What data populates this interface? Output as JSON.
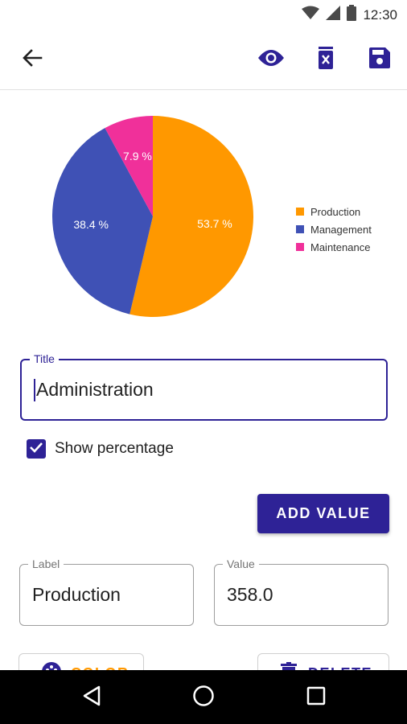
{
  "status_bar": {
    "time": "12:30",
    "icons": [
      "wifi-icon",
      "signal-icon",
      "battery-icon"
    ]
  },
  "app_bar": {
    "icons": [
      "back-arrow-icon",
      "eye-icon",
      "delete-sheet-icon",
      "save-icon"
    ]
  },
  "chart_data": {
    "type": "pie",
    "categories": [
      "Production",
      "Management",
      "Maintenance"
    ],
    "values": [
      53.7,
      38.4,
      7.9
    ],
    "data_labels": [
      "53.7 %",
      "38.4 %",
      "7.9 %"
    ],
    "colors": [
      "#FF9800",
      "#3F51B5",
      "#F0309A"
    ],
    "legend_position": "right",
    "title": ""
  },
  "title_field": {
    "label": "Title",
    "value": "Administration"
  },
  "show_percentage": {
    "label": "Show percentage",
    "checked": true
  },
  "add_value_button": {
    "label": "ADD VALUE"
  },
  "label_field": {
    "label": "Label",
    "value": "Production"
  },
  "value_field": {
    "label": "Value",
    "value": "358.0"
  },
  "color_button": {
    "label": "COLOR"
  },
  "delete_button": {
    "label": "DELETE"
  },
  "nav_bar": {
    "icons": [
      "back-triangle-icon",
      "home-circle-icon",
      "recents-square-icon"
    ]
  },
  "colors": {
    "accent": "#2E2296",
    "white": "#FFFFFF",
    "nav": "#000000"
  }
}
